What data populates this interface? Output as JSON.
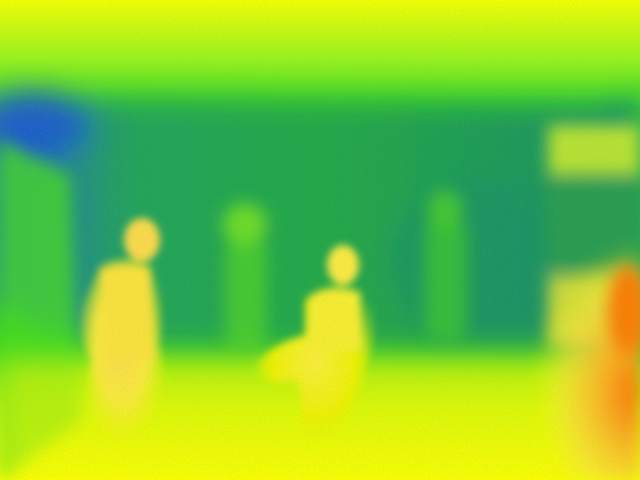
{
  "image": {
    "kind": "false-color thermal / depth frame",
    "palette": {
      "cold": "#1a4fd0",
      "cool": "#1a9a6a",
      "mid": "#2ad21e",
      "lime": "#9bf21a",
      "warm": "#f0f000",
      "hot_yellow": "#ffe23a",
      "hotter": "#ffb020",
      "hottest": "#ff6a00"
    }
  }
}
